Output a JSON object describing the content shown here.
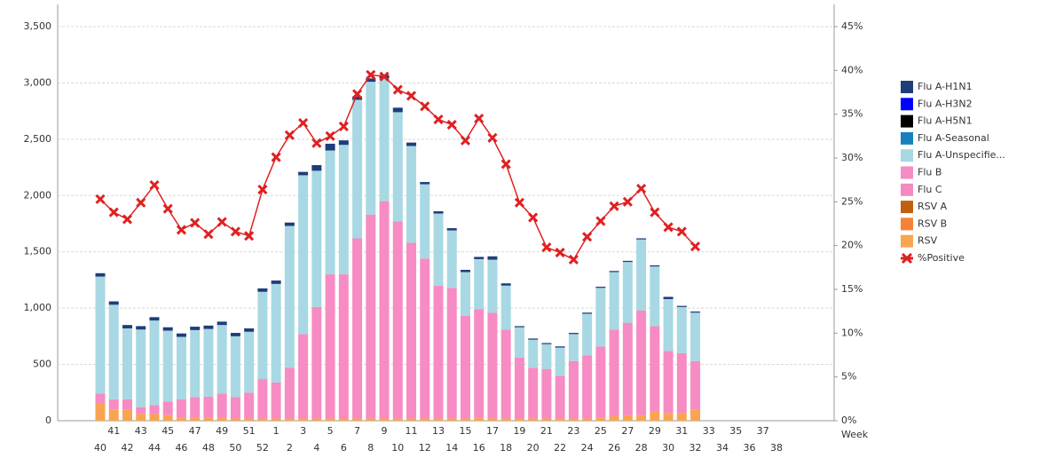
{
  "chart_data": {
    "type": "bar",
    "stacked": true,
    "xlabel": "Week",
    "categories": [
      40,
      41,
      42,
      43,
      44,
      45,
      46,
      47,
      48,
      49,
      50,
      51,
      52,
      1,
      2,
      3,
      4,
      5,
      6,
      7,
      8,
      9,
      10,
      11,
      12,
      13,
      14,
      15,
      16,
      17,
      18,
      19,
      20,
      21,
      22,
      23,
      24,
      25,
      26,
      27,
      28,
      29,
      30,
      31,
      32,
      33,
      34,
      35,
      36,
      37,
      38
    ],
    "ylim": [
      0,
      3500
    ],
    "yticks": [
      0,
      500,
      {
        "value": 1000,
        "label": "1,000"
      },
      {
        "value": 1500,
        "label": "1,500"
      },
      {
        "value": 2000,
        "label": "2,000"
      },
      {
        "value": 2500,
        "label": "2,500"
      },
      {
        "value": 3000,
        "label": "3,000"
      },
      {
        "value": 3500,
        "label": "3,500"
      }
    ],
    "y2lim": [
      0,
      45
    ],
    "y2ticks": [
      {
        "value": 0,
        "label": "0%"
      },
      {
        "value": 5,
        "label": "5%"
      },
      {
        "value": 10,
        "label": "10%"
      },
      {
        "value": 15,
        "label": "15%"
      },
      {
        "value": 20,
        "label": "20%"
      },
      {
        "value": 25,
        "label": "25%"
      },
      {
        "value": 30,
        "label": "30%"
      },
      {
        "value": 35,
        "label": "35%"
      },
      {
        "value": 40,
        "label": "40%"
      },
      {
        "value": 45,
        "label": "45%"
      }
    ],
    "grid": true,
    "series": [
      {
        "name": "Flu A-H1N1",
        "color": "#1f3d7a",
        "values": [
          30,
          30,
          30,
          30,
          30,
          30,
          30,
          30,
          30,
          30,
          30,
          30,
          30,
          30,
          30,
          30,
          50,
          60,
          40,
          30,
          30,
          30,
          40,
          30,
          20,
          20,
          20,
          20,
          20,
          30,
          20,
          10,
          10,
          10,
          10,
          10,
          10,
          10,
          10,
          10,
          10,
          10,
          20,
          10,
          10,
          null,
          null,
          null,
          null,
          null,
          null
        ]
      },
      {
        "name": "Flu A-H3N2",
        "color": "#0000ff",
        "values": [
          0,
          0,
          0,
          0,
          0,
          0,
          0,
          0,
          0,
          0,
          0,
          0,
          0,
          0,
          0,
          0,
          0,
          0,
          0,
          0,
          0,
          0,
          0,
          0,
          0,
          0,
          0,
          0,
          0,
          0,
          0,
          0,
          0,
          0,
          0,
          0,
          0,
          0,
          0,
          0,
          0,
          0,
          0,
          0,
          0,
          null,
          null,
          null,
          null,
          null,
          null
        ]
      },
      {
        "name": "Flu A-H5N1",
        "color": "#000000",
        "values": [
          0,
          0,
          0,
          0,
          0,
          0,
          0,
          0,
          0,
          0,
          0,
          0,
          0,
          0,
          0,
          0,
          0,
          0,
          0,
          0,
          0,
          0,
          0,
          0,
          0,
          0,
          0,
          0,
          0,
          0,
          0,
          0,
          0,
          0,
          0,
          0,
          0,
          0,
          0,
          0,
          0,
          0,
          0,
          0,
          0,
          null,
          null,
          null,
          null,
          null,
          null
        ]
      },
      {
        "name": "Flu A-Seasonal",
        "color": "#1a7fc1",
        "values": [
          0,
          0,
          0,
          0,
          0,
          0,
          0,
          0,
          0,
          0,
          0,
          0,
          0,
          0,
          0,
          0,
          0,
          0,
          0,
          0,
          0,
          0,
          0,
          0,
          0,
          0,
          0,
          0,
          0,
          0,
          0,
          0,
          0,
          0,
          0,
          0,
          0,
          0,
          0,
          0,
          0,
          0,
          0,
          0,
          0,
          null,
          null,
          null,
          null,
          null,
          null
        ]
      },
      {
        "name": "Flu A-Unspecifie...",
        "color": "#a8d8e4",
        "values": [
          1040,
          840,
          630,
          690,
          750,
          630,
          555,
          595,
          600,
          610,
          540,
          540,
          775,
          875,
          1260,
          1410,
          1210,
          1100,
          1150,
          1230,
          1180,
          1090,
          970,
          860,
          660,
          640,
          510,
          390,
          445,
          470,
          390,
          270,
          250,
          220,
          250,
          240,
          370,
          520,
          510,
          540,
          630,
          530,
          460,
          410,
          430,
          null,
          null,
          null,
          null,
          null,
          null
        ]
      },
      {
        "name": "Flu B",
        "color": "#f78bc3",
        "values": [
          90,
          90,
          90,
          60,
          80,
          120,
          160,
          180,
          185,
          210,
          190,
          230,
          350,
          320,
          450,
          750,
          990,
          1280,
          1280,
          1600,
          1810,
          1930,
          1750,
          1560,
          1420,
          1180,
          1160,
          910,
          960,
          940,
          790,
          540,
          450,
          440,
          380,
          510,
          560,
          630,
          770,
          820,
          930,
          760,
          550,
          530,
          430,
          null,
          null,
          null,
          null,
          null,
          null
        ]
      },
      {
        "name": "Flu C",
        "color": "#f48ac0",
        "values": [
          0,
          0,
          0,
          0,
          0,
          0,
          0,
          0,
          0,
          0,
          0,
          0,
          0,
          0,
          0,
          0,
          0,
          0,
          0,
          0,
          0,
          0,
          0,
          0,
          0,
          0,
          0,
          0,
          0,
          0,
          0,
          0,
          0,
          0,
          0,
          0,
          0,
          0,
          0,
          0,
          0,
          0,
          0,
          0,
          0,
          null,
          null,
          null,
          null,
          null,
          null
        ]
      },
      {
        "name": "RSV A",
        "color": "#c0600f",
        "values": [
          0,
          0,
          0,
          0,
          0,
          0,
          0,
          0,
          0,
          0,
          0,
          0,
          0,
          0,
          0,
          0,
          0,
          0,
          0,
          0,
          0,
          0,
          0,
          0,
          0,
          0,
          0,
          0,
          0,
          0,
          0,
          0,
          0,
          0,
          0,
          0,
          0,
          0,
          0,
          0,
          0,
          0,
          0,
          0,
          0,
          null,
          null,
          null,
          null,
          null,
          null
        ]
      },
      {
        "name": "RSV B",
        "color": "#f58238",
        "values": [
          0,
          0,
          0,
          0,
          0,
          0,
          0,
          0,
          0,
          0,
          0,
          0,
          0,
          0,
          0,
          0,
          0,
          0,
          0,
          0,
          0,
          0,
          0,
          0,
          0,
          0,
          0,
          0,
          0,
          0,
          0,
          0,
          0,
          0,
          0,
          0,
          0,
          0,
          0,
          0,
          0,
          0,
          0,
          0,
          0,
          null,
          null,
          null,
          null,
          null,
          null
        ]
      },
      {
        "name": "RSV",
        "color": "#f8a552",
        "values": [
          150,
          100,
          100,
          60,
          60,
          50,
          30,
          30,
          30,
          30,
          20,
          20,
          20,
          20,
          20,
          20,
          20,
          20,
          20,
          20,
          20,
          20,
          20,
          20,
          20,
          20,
          20,
          20,
          30,
          20,
          20,
          20,
          20,
          20,
          20,
          20,
          20,
          30,
          40,
          50,
          50,
          80,
          70,
          70,
          100,
          null,
          null,
          null,
          null,
          null,
          null
        ]
      },
      {
        "name": "%Positive",
        "type": "line",
        "axis": "y2",
        "color": "#e02020",
        "values": [
          25.3,
          23.8,
          23.0,
          24.9,
          26.9,
          24.2,
          21.8,
          22.6,
          21.3,
          22.7,
          21.6,
          21.1,
          26.4,
          30.1,
          32.6,
          34.0,
          31.7,
          32.5,
          33.6,
          37.3,
          39.5,
          39.3,
          37.8,
          37.1,
          35.9,
          34.4,
          33.8,
          32.0,
          34.5,
          32.3,
          29.3,
          24.9,
          23.2,
          19.8,
          19.2,
          18.4,
          21.0,
          22.8,
          24.5,
          25.0,
          26.5,
          23.8,
          22.1,
          21.6,
          19.9,
          null,
          null,
          null,
          null,
          null,
          null
        ]
      }
    ]
  }
}
